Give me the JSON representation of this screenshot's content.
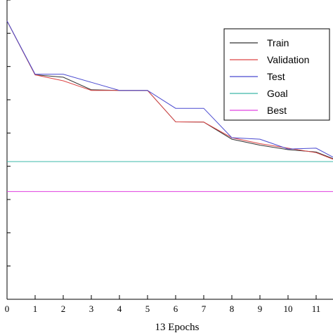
{
  "chart_data": {
    "type": "line",
    "xlabel": "13 Epochs",
    "ylabel": "",
    "xlim": [
      0,
      11.6
    ],
    "x_ticks": [
      "0",
      "1",
      "2",
      "3",
      "4",
      "5",
      "6",
      "7",
      "8",
      "9",
      "10",
      "11"
    ],
    "y_ticks_count": 10,
    "grid": false,
    "legend_position": "top-right",
    "series": [
      {
        "name": "Train",
        "color": "#333333",
        "points": [
          [
            0,
            0.93
          ],
          [
            1,
            0.75
          ],
          [
            2,
            0.742
          ],
          [
            3,
            0.7
          ],
          [
            4,
            0.698
          ],
          [
            5,
            0.698
          ],
          [
            6,
            0.593
          ],
          [
            7,
            0.592
          ],
          [
            8,
            0.535
          ],
          [
            9,
            0.515
          ],
          [
            10,
            0.5
          ],
          [
            11,
            0.492
          ],
          [
            11.6,
            0.47
          ]
        ]
      },
      {
        "name": "Validation",
        "color": "#dd4444",
        "points": [
          [
            0,
            0.93
          ],
          [
            1,
            0.75
          ],
          [
            2,
            0.73
          ],
          [
            3,
            0.698
          ],
          [
            4,
            0.698
          ],
          [
            5,
            0.698
          ],
          [
            6,
            0.593
          ],
          [
            7,
            0.592
          ],
          [
            8,
            0.54
          ],
          [
            9,
            0.52
          ],
          [
            10,
            0.505
          ],
          [
            11,
            0.49
          ],
          [
            11.6,
            0.468
          ]
        ]
      },
      {
        "name": "Test",
        "color": "#4a4ad0",
        "points": [
          [
            0,
            0.93
          ],
          [
            1,
            0.752
          ],
          [
            2,
            0.752
          ],
          [
            3,
            0.725
          ],
          [
            4,
            0.698
          ],
          [
            5,
            0.698
          ],
          [
            6,
            0.638
          ],
          [
            7,
            0.638
          ],
          [
            8,
            0.54
          ],
          [
            9,
            0.535
          ],
          [
            10,
            0.502
          ],
          [
            11,
            0.505
          ],
          [
            11.6,
            0.475
          ]
        ]
      },
      {
        "name": "Goal",
        "color": "#3cb8a8",
        "points": [
          [
            0,
            0.46
          ],
          [
            11.6,
            0.46
          ]
        ]
      },
      {
        "name": "Best",
        "color": "#e040e0",
        "points": [
          [
            0,
            0.36
          ],
          [
            11.6,
            0.36
          ]
        ]
      }
    ]
  }
}
